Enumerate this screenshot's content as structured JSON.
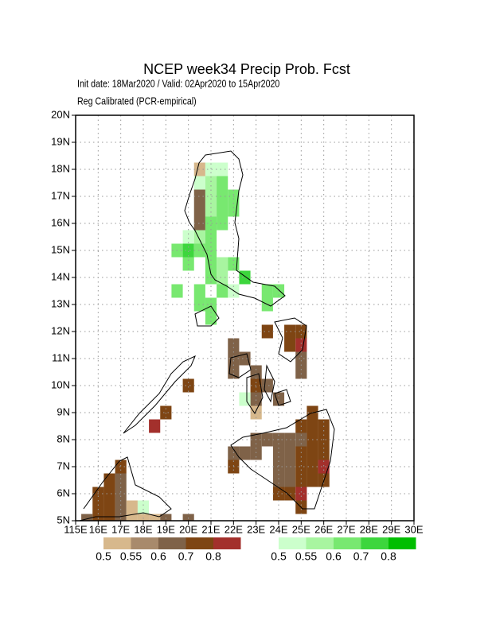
{
  "chart_data": {
    "type": "grid-map",
    "title": "NCEP week34 Precip Prob. Fcst",
    "subtitle": "Init date: 18Mar2020 / Valid: 02Apr2020 to 15Apr2020",
    "note": "Reg Calibrated (PCR-empirical)",
    "xlim": [
      115,
      130
    ],
    "ylim": [
      5,
      20
    ],
    "xticks": [
      {
        "value": 115,
        "label": "115E"
      },
      {
        "value": 116,
        "label": "16E"
      },
      {
        "value": 117,
        "label": "17E"
      },
      {
        "value": 118,
        "label": "18E"
      },
      {
        "value": 119,
        "label": "19E"
      },
      {
        "value": 120,
        "label": "20E"
      },
      {
        "value": 121,
        "label": "21E"
      },
      {
        "value": 122,
        "label": "22E"
      },
      {
        "value": 123,
        "label": "23E"
      },
      {
        "value": 124,
        "label": "24E"
      },
      {
        "value": 125,
        "label": "25E"
      },
      {
        "value": 126,
        "label": "26E"
      },
      {
        "value": 127,
        "label": "27E"
      },
      {
        "value": 128,
        "label": "28E"
      },
      {
        "value": 129,
        "label": "29E"
      },
      {
        "value": 130,
        "label": "30E"
      }
    ],
    "yticks": [
      {
        "value": 5,
        "label": "5N"
      },
      {
        "value": 6,
        "label": "6N"
      },
      {
        "value": 7,
        "label": "7N"
      },
      {
        "value": 8,
        "label": "8N"
      },
      {
        "value": 9,
        "label": "9N"
      },
      {
        "value": 10,
        "label": "10N"
      },
      {
        "value": 11,
        "label": "11N"
      },
      {
        "value": 12,
        "label": "12N"
      },
      {
        "value": 13,
        "label": "13N"
      },
      {
        "value": 14,
        "label": "14N"
      },
      {
        "value": 15,
        "label": "15N"
      },
      {
        "value": 16,
        "label": "16N"
      },
      {
        "value": 17,
        "label": "17N"
      },
      {
        "value": 18,
        "label": "18N"
      },
      {
        "value": 19,
        "label": "19N"
      },
      {
        "value": 20,
        "label": "20N"
      }
    ],
    "grid": true,
    "dry_legend": {
      "bounds": [
        0.5,
        0.55,
        0.6,
        0.7,
        0.8
      ],
      "colors": [
        "#d7b88c",
        "#a88a6c",
        "#7f6248",
        "#7e4513",
        "#a3302c"
      ]
    },
    "wet_legend": {
      "bounds": [
        0.5,
        0.55,
        0.6,
        0.7,
        0.8
      ],
      "colors": [
        "#ccffcc",
        "#a8f5a0",
        "#78e870",
        "#3dd63d",
        "#00be00"
      ]
    },
    "wet_cells": [
      [
        121,
        18,
        0.52
      ],
      [
        121.5,
        18,
        0.52
      ],
      [
        120.5,
        17.5,
        0.52
      ],
      [
        121,
        17.5,
        0.57
      ],
      [
        121.5,
        17.5,
        0.62
      ],
      [
        121,
        17,
        0.57
      ],
      [
        121.5,
        17,
        0.62
      ],
      [
        122,
        17,
        0.62
      ],
      [
        121,
        16.5,
        0.57
      ],
      [
        121.5,
        16.5,
        0.62
      ],
      [
        122,
        16.5,
        0.62
      ],
      [
        121,
        16,
        0.62
      ],
      [
        121.5,
        16,
        0.62
      ],
      [
        120,
        15.5,
        0.52
      ],
      [
        120.5,
        15.5,
        0.57
      ],
      [
        121,
        15.5,
        0.62
      ],
      [
        119.5,
        15,
        0.62
      ],
      [
        120,
        15,
        0.75
      ],
      [
        120.5,
        15,
        0.65
      ],
      [
        121,
        15,
        0.65
      ],
      [
        120,
        14.5,
        0.62
      ],
      [
        121,
        14.5,
        0.62
      ],
      [
        121.5,
        14.5,
        0.57
      ],
      [
        122,
        14.5,
        0.62
      ],
      [
        121,
        14,
        0.62
      ],
      [
        121.5,
        14,
        0.57
      ],
      [
        122.5,
        14,
        0.75
      ],
      [
        122,
        13.5,
        0.52
      ],
      [
        119.5,
        13.5,
        0.62
      ],
      [
        120.5,
        13.5,
        0.62
      ],
      [
        121.5,
        13.5,
        0.62
      ],
      [
        123.5,
        13.5,
        0.62
      ],
      [
        124,
        13.5,
        0.62
      ],
      [
        123.5,
        13,
        0.62
      ],
      [
        120.5,
        13,
        0.62
      ],
      [
        121,
        13,
        0.62
      ],
      [
        121,
        12.5,
        0.62
      ],
      [
        122.5,
        9.5,
        0.52
      ],
      [
        118,
        5.5,
        0.52
      ]
    ],
    "dry_cells": [
      [
        120.5,
        18,
        0.52
      ],
      [
        120.5,
        17,
        0.65
      ],
      [
        120.5,
        16.5,
        0.65
      ],
      [
        120.5,
        16,
        0.65
      ],
      [
        123.5,
        12,
        0.75
      ],
      [
        124.5,
        12,
        0.75
      ],
      [
        125,
        12,
        0.75
      ],
      [
        124.5,
        11.5,
        0.75
      ],
      [
        125,
        11.5,
        0.85
      ],
      [
        122,
        11.5,
        0.65
      ],
      [
        122,
        11,
        0.65
      ],
      [
        122.5,
        11,
        0.65
      ],
      [
        122,
        10.5,
        0.65
      ],
      [
        123,
        10.5,
        0.65
      ],
      [
        123,
        10,
        0.75
      ],
      [
        123.5,
        10,
        0.65
      ],
      [
        125,
        11,
        0.65
      ],
      [
        125,
        10.5,
        0.65
      ],
      [
        124,
        9.5,
        0.65
      ],
      [
        123,
        9,
        0.52
      ],
      [
        123,
        9.5,
        0.65
      ],
      [
        120,
        10,
        0.75
      ],
      [
        119,
        9,
        0.75
      ],
      [
        118.5,
        8.5,
        0.85
      ],
      [
        125.5,
        9,
        0.75
      ],
      [
        125,
        8.5,
        0.75
      ],
      [
        125.5,
        8.5,
        0.75
      ],
      [
        126,
        8.5,
        0.75
      ],
      [
        123,
        8,
        0.65
      ],
      [
        123.5,
        8,
        0.65
      ],
      [
        124,
        8,
        0.65
      ],
      [
        124.5,
        8,
        0.65
      ],
      [
        125,
        8,
        0.65
      ],
      [
        125.5,
        8,
        0.75
      ],
      [
        126,
        8,
        0.75
      ],
      [
        122,
        7.5,
        0.65
      ],
      [
        122.5,
        7.5,
        0.65
      ],
      [
        123,
        7.5,
        0.65
      ],
      [
        124,
        7.5,
        0.65
      ],
      [
        124.5,
        7.5,
        0.65
      ],
      [
        125,
        7.5,
        0.75
      ],
      [
        125.5,
        7.5,
        0.75
      ],
      [
        126,
        7.5,
        0.75
      ],
      [
        122,
        7,
        0.75
      ],
      [
        124,
        7,
        0.65
      ],
      [
        124.5,
        7,
        0.65
      ],
      [
        125,
        7,
        0.75
      ],
      [
        125.5,
        7,
        0.75
      ],
      [
        126,
        7,
        0.85
      ],
      [
        124,
        6.5,
        0.65
      ],
      [
        124.5,
        6.5,
        0.65
      ],
      [
        125,
        6.5,
        0.75
      ],
      [
        125.5,
        6.5,
        0.75
      ],
      [
        126,
        6.5,
        0.75
      ],
      [
        124,
        6,
        0.75
      ],
      [
        124.5,
        6,
        0.75
      ],
      [
        125,
        6,
        0.85
      ],
      [
        125,
        5.5,
        0.75
      ],
      [
        117,
        7,
        0.75
      ],
      [
        116.5,
        6.5,
        0.75
      ],
      [
        117,
        6.5,
        0.65
      ],
      [
        116,
        6,
        0.75
      ],
      [
        116.5,
        6,
        0.75
      ],
      [
        117,
        6,
        0.65
      ],
      [
        116,
        5.5,
        0.75
      ],
      [
        116.5,
        5.5,
        0.75
      ],
      [
        117,
        5.5,
        0.65
      ],
      [
        117.5,
        5.5,
        0.52
      ],
      [
        115.5,
        5,
        0.65
      ],
      [
        116,
        5,
        0.75
      ],
      [
        116.5,
        5,
        0.75
      ],
      [
        117,
        5,
        0.65
      ],
      [
        117.5,
        5,
        0.52
      ],
      [
        118,
        5,
        0.52
      ],
      [
        118.5,
        5,
        0.52
      ],
      [
        119,
        5,
        0.65
      ],
      [
        120,
        5,
        0.65
      ]
    ]
  }
}
